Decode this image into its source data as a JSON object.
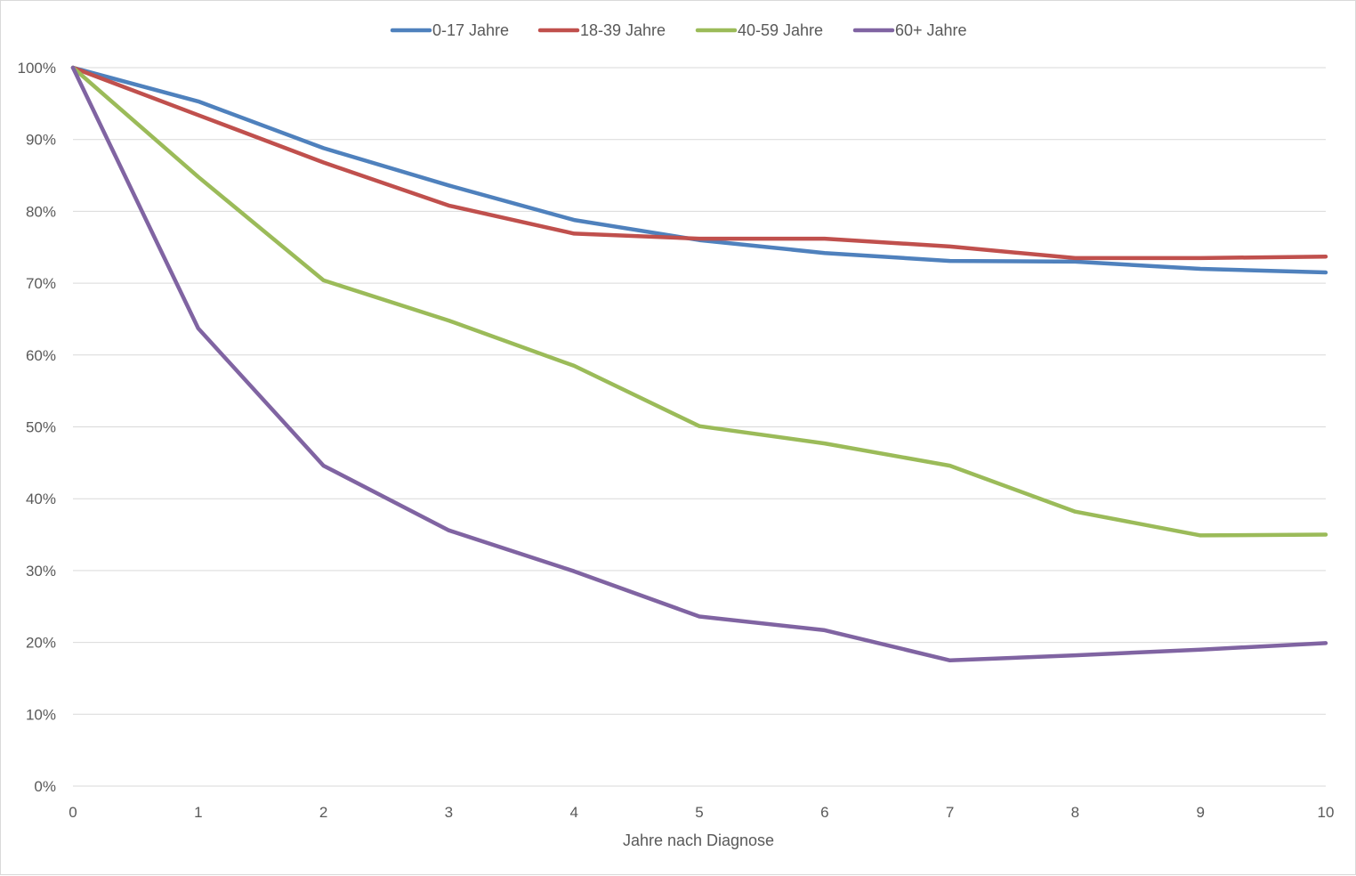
{
  "chart_data": {
    "type": "line",
    "title": "",
    "xlabel": "Jahre nach Diagnose",
    "ylabel": "",
    "x": [
      0,
      1,
      2,
      3,
      4,
      5,
      6,
      7,
      8,
      9,
      10
    ],
    "xlim": [
      0,
      10
    ],
    "ylim": [
      0,
      100
    ],
    "y_ticks": [
      "0%",
      "10%",
      "20%",
      "30%",
      "40%",
      "50%",
      "60%",
      "70%",
      "80%",
      "90%",
      "100%"
    ],
    "x_ticks": [
      "0",
      "1",
      "2",
      "3",
      "4",
      "5",
      "6",
      "7",
      "8",
      "9",
      "10"
    ],
    "grid": "horizontal",
    "legend_position": "top",
    "series": [
      {
        "name": "0-17 Jahre",
        "color": "#4F81BD",
        "values": [
          100,
          95.3,
          88.8,
          83.6,
          78.8,
          76.0,
          74.2,
          73.1,
          73.0,
          72.0,
          71.5
        ]
      },
      {
        "name": "18-39 Jahre",
        "color": "#C0504D",
        "values": [
          100,
          93.4,
          86.8,
          80.8,
          76.9,
          76.2,
          76.2,
          75.1,
          73.5,
          73.5,
          73.7
        ]
      },
      {
        "name": "40-59 Jahre",
        "color": "#9BBB59",
        "values": [
          100,
          84.8,
          70.4,
          64.8,
          58.5,
          50.1,
          47.7,
          44.6,
          38.2,
          34.9,
          35.0
        ]
      },
      {
        "name": "60+ Jahre",
        "color": "#8064A2",
        "values": [
          100,
          63.7,
          44.6,
          35.6,
          29.9,
          23.6,
          21.7,
          17.5,
          18.2,
          19.0,
          19.9
        ]
      }
    ]
  }
}
